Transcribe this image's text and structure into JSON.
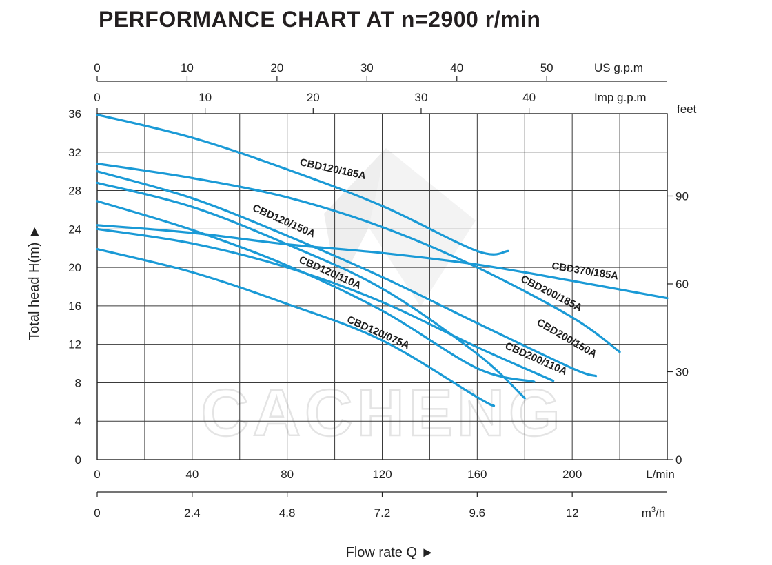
{
  "chart_data": {
    "type": "line",
    "title": "PERFORMANCE CHART AT n=2900 r/min",
    "xlabel": "Flow rate  Q ►",
    "ylabel": "Total  head H(m) ►",
    "xlim": [
      0,
      240
    ],
    "ylim": [
      0,
      36
    ],
    "grid": true,
    "x_ticks": [
      0,
      40,
      80,
      120,
      160,
      200
    ],
    "x_unit": "L/min",
    "y_ticks": [
      0,
      4,
      8,
      12,
      16,
      20,
      24,
      28,
      32,
      36
    ],
    "axes": {
      "m3h": {
        "unit": "m³/h",
        "ticks": [
          "0",
          "2.4",
          "4.8",
          "7.2",
          "9.6",
          "12"
        ],
        "values_lpm": [
          0,
          40,
          80,
          120,
          160,
          200
        ]
      },
      "usgpm": {
        "unit": "US g.p.m",
        "ticks": [
          "0",
          "10",
          "20",
          "30",
          "40",
          "50"
        ],
        "values_lpm": [
          0,
          37.854,
          75.708,
          113.562,
          151.416,
          189.27
        ]
      },
      "impgpm": {
        "unit": "Imp g.p.m",
        "ticks": [
          "0",
          "10",
          "20",
          "30",
          "40"
        ],
        "values_lpm": [
          0,
          45.461,
          90.922,
          136.383,
          181.844
        ]
      },
      "feet": {
        "unit": "feet",
        "ticks": [
          "0",
          "30",
          "60",
          "90"
        ],
        "values_m": [
          0,
          9.144,
          18.288,
          27.432
        ]
      }
    },
    "series": [
      {
        "name": "CBD120/185A",
        "color": "#1a9ad6",
        "x": [
          0,
          40,
          80,
          120,
          160,
          173
        ],
        "y": [
          35.9,
          33.5,
          30.2,
          26.4,
          21.7,
          21.7
        ]
      },
      {
        "name": "CBD120/150A",
        "color": "#1a9ad6",
        "x": [
          0,
          40,
          80,
          120,
          160,
          180
        ],
        "y": [
          28.8,
          26.3,
          22.4,
          17.8,
          11.0,
          6.4
        ]
      },
      {
        "name": "CBD120/110A",
        "color": "#1a9ad6",
        "x": [
          0,
          40,
          80,
          120,
          160,
          184
        ],
        "y": [
          26.9,
          23.9,
          20.2,
          15.5,
          9.5,
          8.1
        ]
      },
      {
        "name": "CBD120/075A",
        "color": "#1a9ad6",
        "x": [
          0,
          40,
          80,
          120,
          160,
          167
        ],
        "y": [
          21.9,
          19.5,
          16.2,
          12.4,
          6.5,
          5.6
        ]
      },
      {
        "name": "CBD200/185A",
        "color": "#1a9ad6",
        "x": [
          0,
          40,
          80,
          120,
          160,
          200,
          220
        ],
        "y": [
          30.8,
          29.3,
          27.3,
          24.2,
          20.0,
          14.8,
          11.2
        ]
      },
      {
        "name": "CBD200/150A",
        "color": "#1a9ad6",
        "x": [
          0,
          40,
          80,
          120,
          160,
          200,
          210
        ],
        "y": [
          30.0,
          27.2,
          23.3,
          19.0,
          14.2,
          9.5,
          8.7
        ]
      },
      {
        "name": "CBD200/110A",
        "color": "#1a9ad6",
        "x": [
          0,
          40,
          80,
          120,
          160,
          192
        ],
        "y": [
          24.0,
          22.5,
          20.0,
          16.4,
          11.7,
          8.2
        ]
      },
      {
        "name": "CBD370/185A",
        "color": "#1a9ad6",
        "x": [
          0,
          40,
          80,
          120,
          160,
          200,
          240
        ],
        "y": [
          24.4,
          23.6,
          22.4,
          21.5,
          20.3,
          18.6,
          16.8
        ]
      }
    ],
    "watermark": "CACHENG"
  }
}
